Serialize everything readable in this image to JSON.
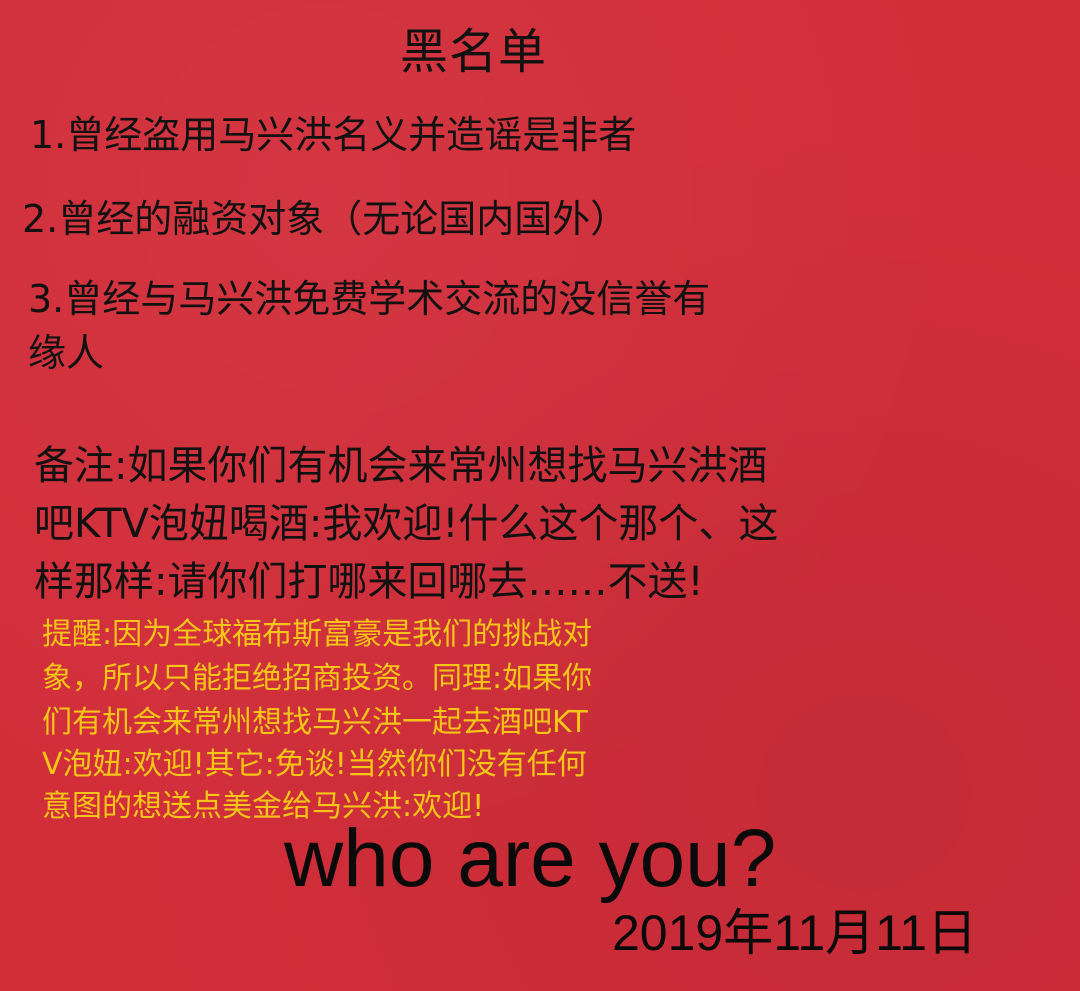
{
  "title": "黑名单",
  "items": [
    "1.曾经盗用马兴洪名义并造谣是非者",
    "2.曾经的融资对象（无论国内国外）",
    "3.曾经与马兴洪免费学术交流的没信誉有",
    "缘人"
  ],
  "note_lines": [
    "备注:如果你们有机会来常州想找马兴洪酒",
    "吧KTV泡妞喝酒:我欢迎!什么这个那个、这",
    "样那样:请你们打哪来回哪去……不送!"
  ],
  "reminder_lines": [
    "提醒:因为全球福布斯富豪是我们的挑战对",
    "象，所以只能拒绝招商投资。同理:如果你",
    "们有机会来常州想找马兴洪一起去酒吧KT",
    "V泡妞:欢迎!其它:免谈!当然你们没有任何",
    "意图的想送点美金给马兴洪:欢迎!"
  ],
  "tagline": "who are you?",
  "date": "2019年11月11日",
  "colors": {
    "background": "#d12e3a",
    "main_text": "#111111",
    "reminder_text": "#f5c518"
  }
}
